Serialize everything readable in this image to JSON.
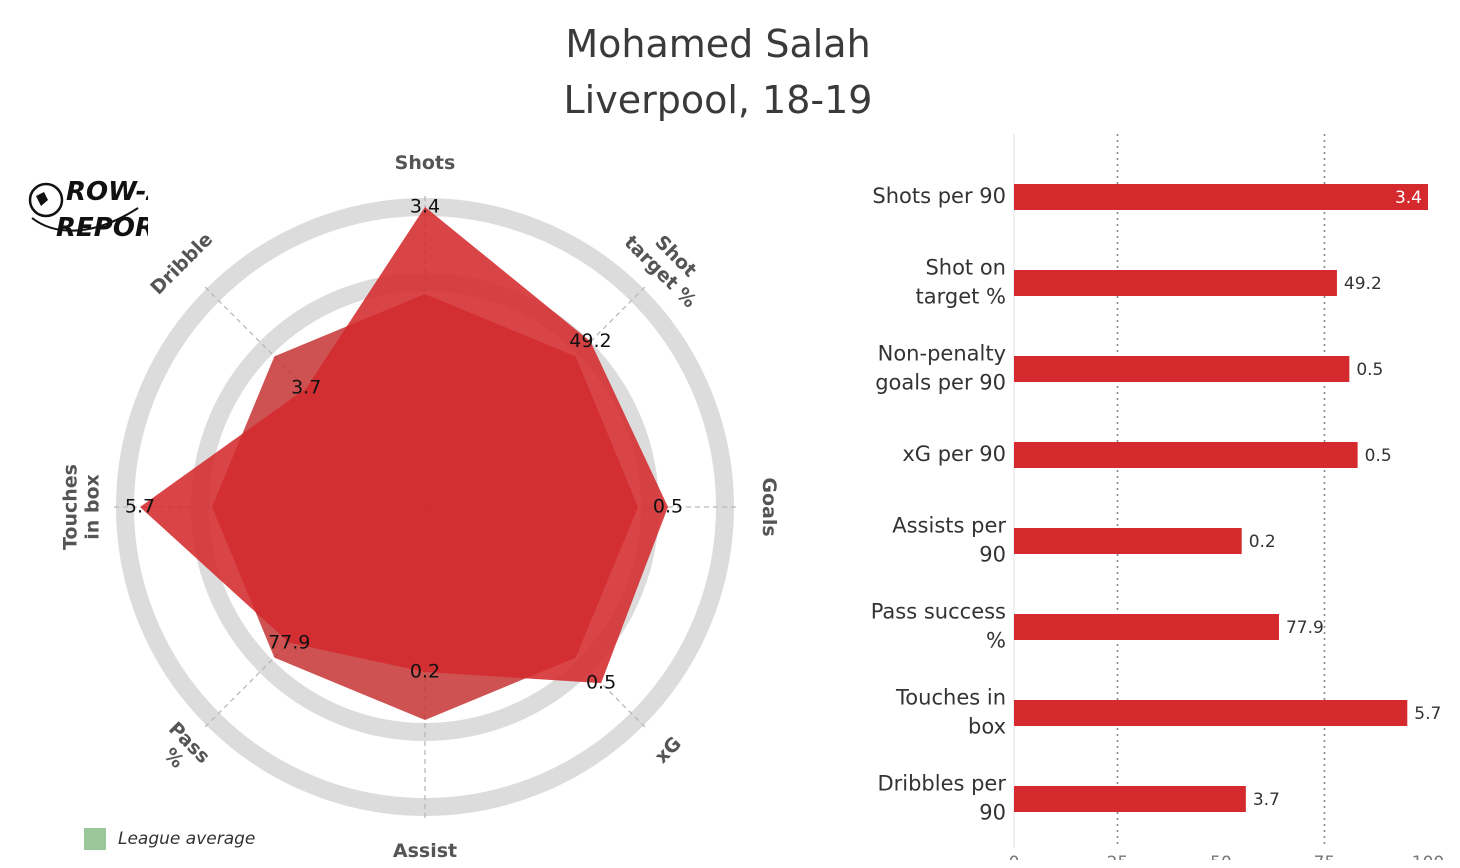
{
  "title": {
    "line1": "Mohamed Salah",
    "line2": "Liverpool, 18-19"
  },
  "logo": {
    "line1": "ROW-Z",
    "line2": "REPORT"
  },
  "legend": {
    "label": "League average",
    "color": "#9bc79b"
  },
  "colors": {
    "bar": "#d42a2d",
    "radar_fill": "#d42a2d",
    "radar_inner": "#c73434",
    "ring": "#dcdcdc"
  },
  "chart_data": [
    {
      "type": "radar",
      "title": "",
      "axes": [
        {
          "label": "Shots",
          "value_label": "3.4",
          "percentile": 100
        },
        {
          "label": "Shot target %",
          "value_label": "49.2",
          "percentile": 78
        },
        {
          "label": "Goals",
          "value_label": "0.5",
          "percentile": 81
        },
        {
          "label": "xG",
          "value_label": "0.5",
          "percentile": 83
        },
        {
          "label": "Assist",
          "value_label": "0.2",
          "percentile": 55
        },
        {
          "label": "Pass %",
          "value_label": "77.9",
          "percentile": 64
        },
        {
          "label": "Touches in box",
          "value_label": "5.7",
          "percentile": 95
        },
        {
          "label": "Dribble",
          "value_label": "3.7",
          "percentile": 56
        }
      ],
      "league_average": [
        71,
        71,
        71,
        71,
        71,
        71,
        71,
        71
      ],
      "rings": [
        25,
        50,
        75,
        100
      ]
    },
    {
      "type": "bar",
      "orientation": "horizontal",
      "categories": [
        [
          "Shots per 90"
        ],
        [
          "Shot on",
          "target %"
        ],
        [
          "Non-penalty",
          "goals per 90"
        ],
        [
          "xG per 90"
        ],
        [
          "Assists per",
          "90"
        ],
        [
          "Pass success",
          "%"
        ],
        [
          "Touches in",
          "box"
        ],
        [
          "Dribbles per",
          "90"
        ]
      ],
      "values": [
        100,
        78,
        81,
        83,
        55,
        64,
        95,
        56
      ],
      "value_labels": [
        "3.4",
        "49.2",
        "0.5",
        "0.5",
        "0.2",
        "77.9",
        "5.7",
        "3.7"
      ],
      "xlim": [
        0,
        100
      ],
      "xticks": [
        "0",
        "25",
        "50",
        "75",
        "100"
      ],
      "reference_lines": [
        25,
        75
      ]
    }
  ]
}
